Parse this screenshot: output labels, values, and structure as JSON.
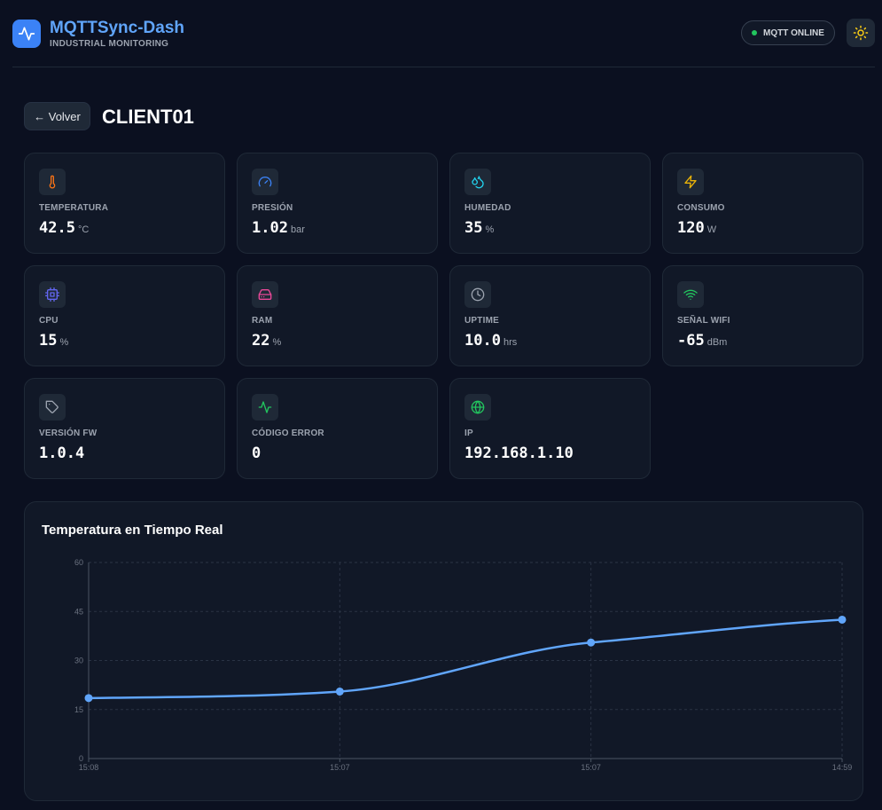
{
  "app": {
    "title": "MQTTSync-Dash",
    "subtitle": "INDUSTRIAL MONITORING",
    "status_label": "MQTT ONLINE"
  },
  "nav": {
    "back_label": "← Volver",
    "device_name": "CLIENT01"
  },
  "metrics": [
    {
      "label": "TEMPERATURA",
      "value": "42.5",
      "unit": "°C",
      "icon": "thermometer-icon",
      "color": "#f97316"
    },
    {
      "label": "PRESIÓN",
      "value": "1.02",
      "unit": "bar",
      "icon": "gauge-icon",
      "color": "#3b82f6"
    },
    {
      "label": "HUMEDAD",
      "value": "35",
      "unit": "%",
      "icon": "droplets-icon",
      "color": "#22d3ee"
    },
    {
      "label": "CONSUMO",
      "value": "120",
      "unit": "W",
      "icon": "zap-icon",
      "color": "#eab308"
    },
    {
      "label": "CPU",
      "value": "15",
      "unit": "%",
      "icon": "cpu-icon",
      "color": "#6366f1"
    },
    {
      "label": "RAM",
      "value": "22",
      "unit": "%",
      "icon": "hard-drive-icon",
      "color": "#ec4899"
    },
    {
      "label": "UPTIME",
      "value": "10.0",
      "unit": "hrs",
      "icon": "clock-icon",
      "color": "#9ca3af"
    },
    {
      "label": "SEÑAL WIFI",
      "value": "-65",
      "unit": "dBm",
      "icon": "wifi-icon",
      "color": "#22c55e"
    },
    {
      "label": "VERSIÓN FW",
      "value": "1.0.4",
      "unit": "",
      "icon": "tag-icon",
      "color": "#9ca3af"
    },
    {
      "label": "CÓDIGO ERROR",
      "value": "0",
      "unit": "",
      "icon": "activity-icon",
      "color": "#22c55e"
    },
    {
      "label": "IP",
      "value": "192.168.1.10",
      "unit": "",
      "icon": "globe-icon",
      "color": "#22c55e"
    }
  ],
  "chart_title": "Temperatura en Tiempo Real",
  "chart_data": {
    "type": "line",
    "categories": [
      "15:08",
      "15:07",
      "15:07",
      "14:59"
    ],
    "series": [
      {
        "values": [
          18.5,
          20.5,
          35.5,
          42.5
        ],
        "color": "#60a5fa"
      }
    ],
    "yticks": [
      0,
      15,
      30,
      45,
      60
    ],
    "ylim": [
      0,
      60
    ],
    "grid": true,
    "xlabel": "",
    "ylabel": ""
  }
}
